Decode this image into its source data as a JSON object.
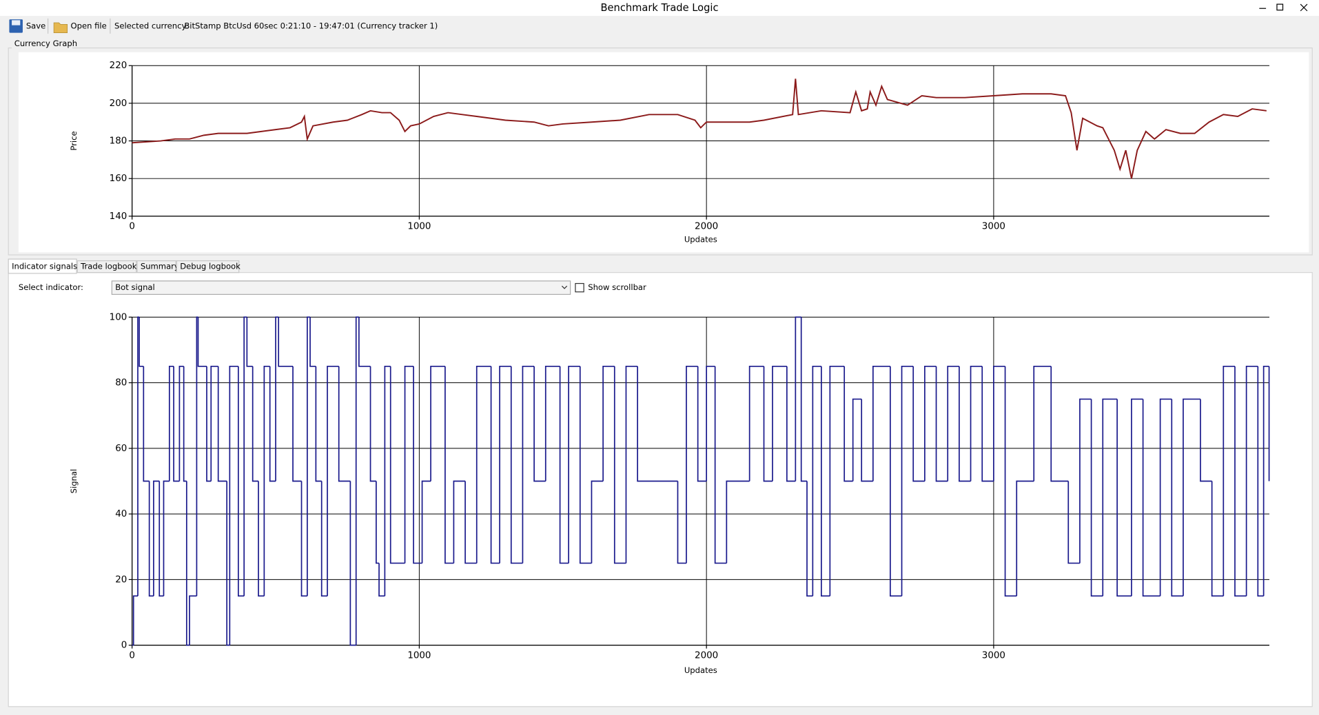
{
  "window": {
    "title": "Benchmark Trade Logic"
  },
  "toolbar": {
    "save": "Save",
    "open_file": "Open file",
    "selected_currency_label": "Selected currency:",
    "selected_currency": "BitStamp BtcUsd 60sec 0:21:10 - 19:47:01 (Currency tracker 1)"
  },
  "group_box": {
    "title": "Currency Graph"
  },
  "tabs": [
    "Indicator signals",
    "Trade logbook",
    "Summary",
    "Debug logbook"
  ],
  "indicator": {
    "label": "Select indicator:",
    "selected": "Bot signal",
    "checkbox": "Show scrollbar"
  },
  "chart_data": [
    {
      "type": "line",
      "xlabel": "Updates",
      "ylabel": "Price",
      "color": "#8b1a1a",
      "x": [
        0,
        100,
        150,
        200,
        250,
        300,
        350,
        400,
        450,
        500,
        550,
        590,
        600,
        610,
        630,
        700,
        750,
        800,
        830,
        870,
        900,
        930,
        950,
        970,
        1000,
        1050,
        1100,
        1150,
        1200,
        1300,
        1400,
        1450,
        1500,
        1600,
        1700,
        1800,
        1900,
        1960,
        1980,
        2000,
        2100,
        2150,
        2200,
        2300,
        2310,
        2320,
        2400,
        2500,
        2520,
        2540,
        2560,
        2570,
        2590,
        2610,
        2630,
        2700,
        2750,
        2800,
        2900,
        3000,
        3100,
        3200,
        3250,
        3270,
        3290,
        3310,
        3360,
        3380,
        3420,
        3440,
        3460,
        3480,
        3500,
        3530,
        3560,
        3600,
        3650,
        3700,
        3750,
        3800,
        3850,
        3900,
        3950
      ],
      "values": [
        179,
        180,
        181,
        181,
        183,
        184,
        184,
        184,
        185,
        186,
        187,
        190,
        193,
        181,
        188,
        190,
        191,
        194,
        196,
        195,
        195,
        191,
        185,
        188,
        189,
        193,
        195,
        194,
        193,
        191,
        190,
        188,
        189,
        190,
        191,
        194,
        194,
        191,
        187,
        190,
        190,
        190,
        191,
        194,
        213,
        194,
        196,
        195,
        206,
        196,
        197,
        206,
        199,
        209,
        202,
        199,
        204,
        203,
        203,
        204,
        205,
        205,
        204,
        195,
        175,
        192,
        188,
        187,
        175,
        165,
        175,
        160,
        175,
        185,
        181,
        186,
        184,
        184,
        190,
        194,
        193,
        197,
        196
      ],
      "xlim": [
        0,
        3960
      ],
      "ylim": [
        140,
        220
      ],
      "xticks": [
        0,
        1000,
        2000,
        3000
      ],
      "yticks": [
        140,
        160,
        180,
        200,
        220
      ],
      "grid": true
    },
    {
      "type": "step",
      "xlabel": "Updates",
      "ylabel": "Signal",
      "color": "#1a1a8c",
      "x": [
        0,
        5,
        20,
        25,
        40,
        60,
        75,
        95,
        110,
        130,
        145,
        165,
        180,
        190,
        200,
        225,
        230,
        260,
        275,
        300,
        330,
        340,
        370,
        390,
        400,
        420,
        440,
        460,
        480,
        500,
        510,
        560,
        590,
        610,
        620,
        640,
        660,
        680,
        720,
        760,
        780,
        790,
        830,
        850,
        860,
        880,
        900,
        950,
        980,
        1010,
        1040,
        1090,
        1120,
        1160,
        1200,
        1250,
        1280,
        1320,
        1360,
        1400,
        1440,
        1490,
        1520,
        1560,
        1600,
        1640,
        1680,
        1720,
        1760,
        1900,
        1930,
        1970,
        2000,
        2030,
        2070,
        2150,
        2200,
        2230,
        2280,
        2310,
        2330,
        2350,
        2370,
        2400,
        2430,
        2480,
        2510,
        2540,
        2580,
        2640,
        2680,
        2720,
        2760,
        2800,
        2840,
        2880,
        2920,
        2960,
        3000,
        3040,
        3080,
        3140,
        3200,
        3260,
        3300,
        3340,
        3380,
        3430,
        3480,
        3520,
        3580,
        3620,
        3660,
        3720,
        3760,
        3800,
        3840,
        3880,
        3920,
        3940,
        3959
      ],
      "values": [
        0,
        15,
        100,
        85,
        50,
        15,
        50,
        15,
        50,
        85,
        50,
        85,
        50,
        0,
        15,
        100,
        85,
        50,
        85,
        50,
        0,
        85,
        15,
        100,
        85,
        50,
        15,
        85,
        50,
        100,
        85,
        50,
        15,
        100,
        85,
        50,
        15,
        85,
        50,
        0,
        100,
        85,
        50,
        25,
        15,
        85,
        25,
        85,
        25,
        50,
        85,
        25,
        50,
        25,
        85,
        25,
        85,
        25,
        85,
        50,
        85,
        25,
        85,
        25,
        50,
        85,
        25,
        85,
        50,
        25,
        85,
        50,
        85,
        25,
        50,
        85,
        50,
        85,
        50,
        100,
        50,
        15,
        85,
        15,
        85,
        50,
        75,
        50,
        85,
        15,
        85,
        50,
        85,
        50,
        85,
        50,
        85,
        50,
        85,
        15,
        50,
        85,
        50,
        25,
        75,
        15,
        75,
        15,
        75,
        15,
        75,
        15,
        75,
        50,
        15,
        85,
        15,
        85,
        15,
        85,
        50
      ],
      "xlim": [
        0,
        3960
      ],
      "ylim": [
        0,
        100
      ],
      "xticks": [
        0,
        1000,
        2000,
        3000
      ],
      "yticks": [
        0,
        20,
        40,
        60,
        80,
        100
      ],
      "grid": true
    }
  ]
}
